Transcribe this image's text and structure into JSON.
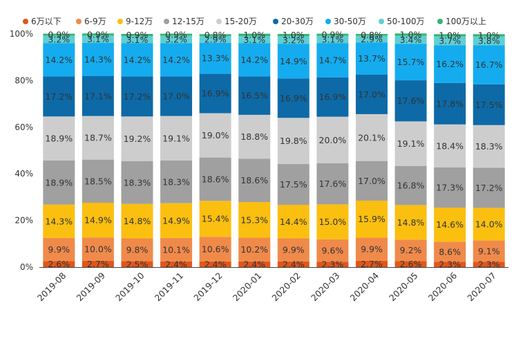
{
  "chart_data": {
    "type": "bar",
    "stacked": true,
    "percent": true,
    "title": "",
    "xlabel": "",
    "ylabel": "",
    "ylim": [
      0,
      100
    ],
    "yticks": [
      0,
      20,
      40,
      60,
      80,
      100
    ],
    "ytick_labels": [
      "0%",
      "20%",
      "40%",
      "60%",
      "80%",
      "100%"
    ],
    "grid": false,
    "legend_position": "top",
    "categories": [
      "2019-08",
      "2019-09",
      "2019-10",
      "2019-11",
      "2019-12",
      "2020-01",
      "2020-02",
      "2020-03",
      "2020-04",
      "2020-05",
      "2020-06",
      "2020-07"
    ],
    "series": [
      {
        "name": "6万以下",
        "color": "#e0561a",
        "values": [
          2.6,
          2.7,
          2.5,
          2.4,
          2.4,
          2.4,
          2.4,
          2.3,
          2.7,
          2.6,
          2.3,
          2.3
        ],
        "labels": [
          "2.6%",
          "2.7%",
          "2.5%",
          "2.4%",
          "2.4%",
          "2.4%",
          "2.4%",
          "2.3%",
          "2.7%",
          "2.6%",
          "2.3%",
          "2.3%"
        ]
      },
      {
        "name": "6-9万",
        "color": "#f08a4b",
        "values": [
          9.9,
          10.0,
          9.8,
          10.1,
          10.6,
          10.2,
          9.9,
          9.6,
          9.9,
          9.2,
          8.6,
          9.1
        ],
        "labels": [
          "9.9%",
          "10.0%",
          "9.8%",
          "10.1%",
          "10.6%",
          "10.2%",
          "9.9%",
          "9.6%",
          "9.9%",
          "9.2%",
          "8.6%",
          "9.1%"
        ]
      },
      {
        "name": "9-12万",
        "color": "#fbbf10",
        "values": [
          14.3,
          14.9,
          14.8,
          14.9,
          15.4,
          15.3,
          14.4,
          15.0,
          15.9,
          14.8,
          14.6,
          14.0
        ],
        "labels": [
          "14.3%",
          "14.9%",
          "14.8%",
          "14.9%",
          "15.4%",
          "15.3%",
          "14.4%",
          "15.0%",
          "15.9%",
          "14.8%",
          "14.6%",
          "14.0%"
        ]
      },
      {
        "name": "12-15万",
        "color": "#a0a0a0",
        "values": [
          18.9,
          18.5,
          18.3,
          18.3,
          18.6,
          18.6,
          17.5,
          17.6,
          17.0,
          16.8,
          17.3,
          17.2
        ],
        "labels": [
          "18.9%",
          "18.5%",
          "18.3%",
          "18.3%",
          "18.6%",
          "18.6%",
          "17.5%",
          "17.6%",
          "17.0%",
          "16.8%",
          "17.3%",
          "17.2%"
        ]
      },
      {
        "name": "15-20万",
        "color": "#cdcdcd",
        "values": [
          18.9,
          18.7,
          19.2,
          19.1,
          19.0,
          18.8,
          19.8,
          20.0,
          20.1,
          19.1,
          18.4,
          18.3
        ],
        "labels": [
          "18.9%",
          "18.7%",
          "19.2%",
          "19.1%",
          "19.0%",
          "18.8%",
          "19.8%",
          "20.0%",
          "20.1%",
          "19.1%",
          "18.4%",
          "18.3%"
        ]
      },
      {
        "name": "20-30万",
        "color": "#0d6aa7",
        "values": [
          17.2,
          17.1,
          17.2,
          17.0,
          16.9,
          16.5,
          16.9,
          16.9,
          17.0,
          17.6,
          17.8,
          17.5
        ],
        "labels": [
          "17.2%",
          "17.1%",
          "17.2%",
          "17.0%",
          "16.9%",
          "16.5%",
          "16.9%",
          "16.9%",
          "17.0%",
          "17.6%",
          "17.8%",
          "17.5%"
        ]
      },
      {
        "name": "30-50万",
        "color": "#14acef",
        "values": [
          14.2,
          14.3,
          14.2,
          14.2,
          13.3,
          14.2,
          14.9,
          14.7,
          13.7,
          15.7,
          16.2,
          16.7
        ],
        "labels": [
          "14.2%",
          "14.3%",
          "14.2%",
          "14.2%",
          "13.3%",
          "14.2%",
          "14.9%",
          "14.7%",
          "13.7%",
          "15.7%",
          "16.2%",
          "16.7%"
        ]
      },
      {
        "name": "50-100万",
        "color": "#5fcfd3",
        "values": [
          3.2,
          3.1,
          3.1,
          3.2,
          2.9,
          3.1,
          3.2,
          3.1,
          2.9,
          3.4,
          3.7,
          3.8
        ],
        "labels": [
          "3.2%",
          "3.1%",
          "3.1%",
          "3.2%",
          "2.9%",
          "3.1%",
          "3.2%",
          "3.1%",
          "2.9%",
          "3.4%",
          "3.7%",
          "3.8%"
        ]
      },
      {
        "name": "100万以上",
        "color": "#36b574",
        "values": [
          0.9,
          0.9,
          0.9,
          0.9,
          0.8,
          1.0,
          1.0,
          0.9,
          0.8,
          1.0,
          1.0,
          1.0
        ],
        "labels": [
          "0.9%",
          "0.9%",
          "0.9%",
          "0.9%",
          "0.8%",
          "1.0%",
          "1.0%",
          "0.9%",
          "0.8%",
          "1.0%",
          "1.0%",
          "1.0%"
        ]
      }
    ]
  }
}
